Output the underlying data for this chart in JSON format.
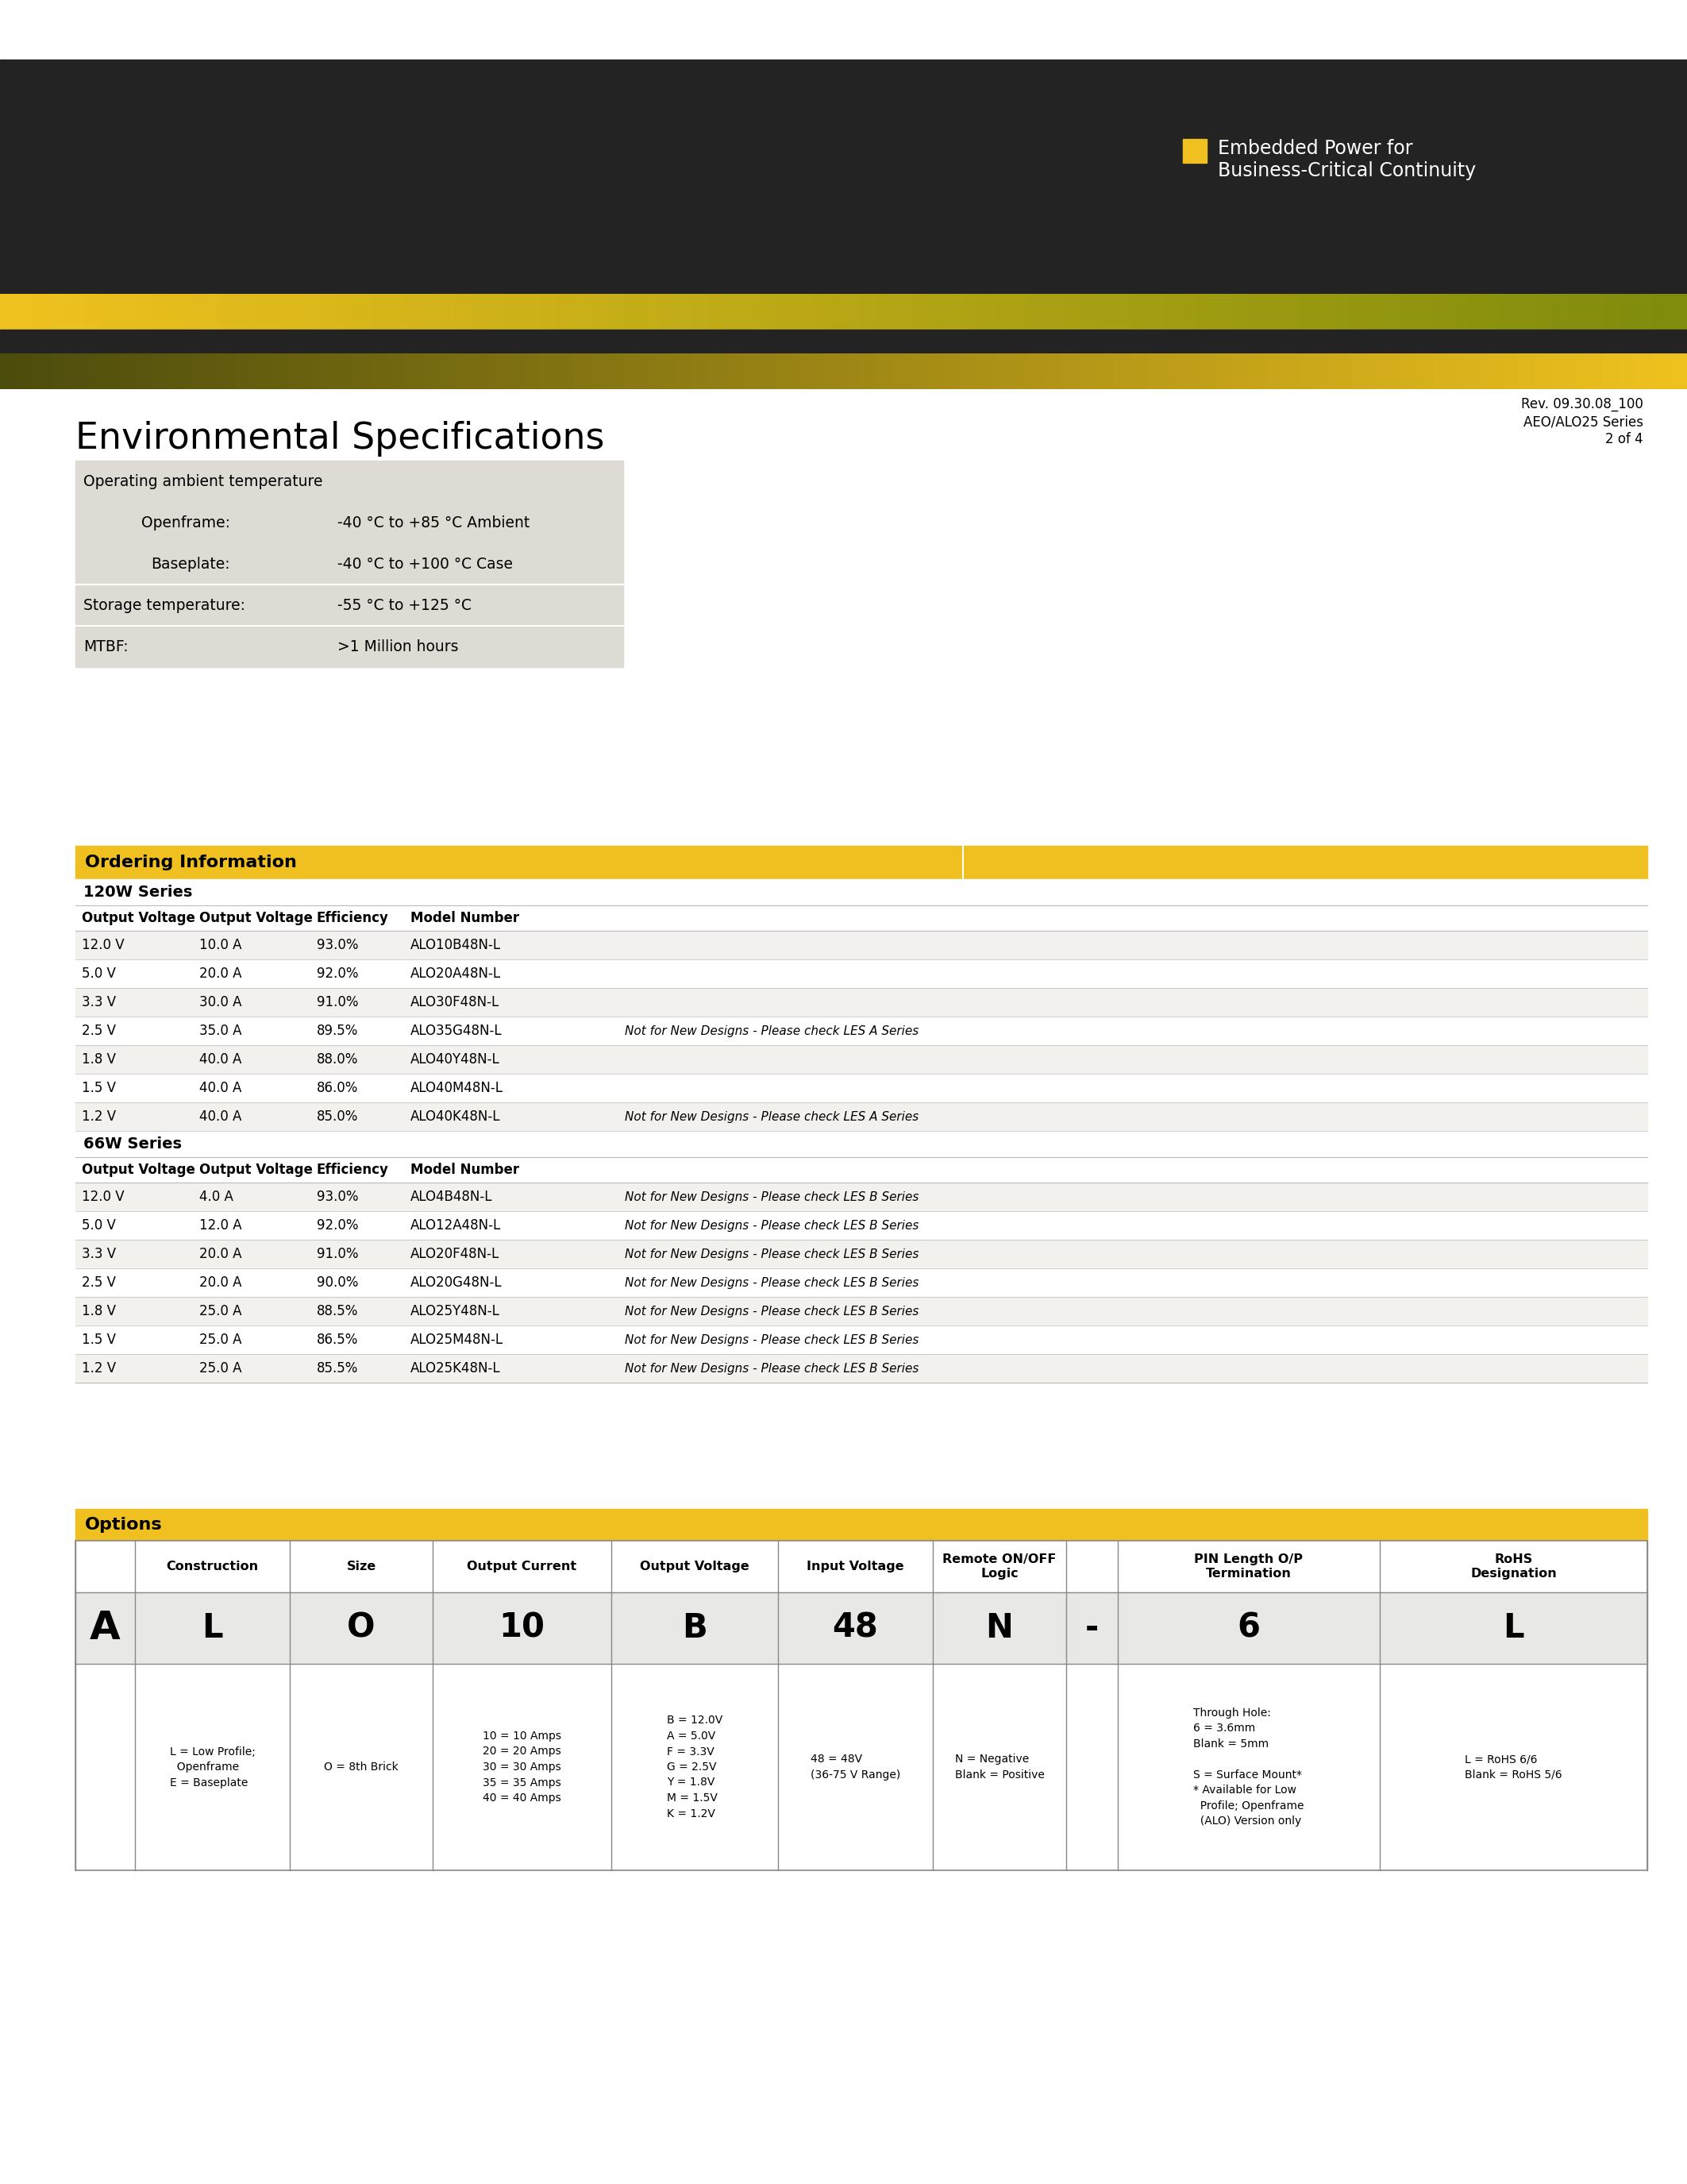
{
  "page_bg": "#ffffff",
  "header_dark_bg": "#232323",
  "header_yellow": "#f0c020",
  "yellow_accent": "#f0c020",
  "brand_text_line1": "Embedded Power for",
  "brand_text_line2": "Business-Critical Continuity",
  "rev_text": "Rev. 09.30.08_100",
  "series_text": "AEO/ALO25 Series",
  "page_text": "2 of 4",
  "env_title": "Environmental Specifications",
  "env_table_bg": "#dedad4",
  "ordering_title": "Ordering Information",
  "order_header_bg": "#f0c020",
  "series_120w_label": "120W Series",
  "series_66w_label": "66W Series",
  "col_headers": [
    "Output Voltage",
    "Output Voltage",
    "Efficiency",
    "Model Number"
  ],
  "rows_120w": [
    [
      "12.0 V",
      "10.0 A",
      "93.0%",
      "ALO10B48N-L",
      ""
    ],
    [
      "5.0 V",
      "20.0 A",
      "92.0%",
      "ALO20A48N-L",
      ""
    ],
    [
      "3.3 V",
      "30.0 A",
      "91.0%",
      "ALO30F48N-L",
      ""
    ],
    [
      "2.5 V",
      "35.0 A",
      "89.5%",
      "ALO35G48N-L",
      "Not for New Designs - Please check LES A Series"
    ],
    [
      "1.8 V",
      "40.0 A",
      "88.0%",
      "ALO40Y48N-L",
      ""
    ],
    [
      "1.5 V",
      "40.0 A",
      "86.0%",
      "ALO40M48N-L",
      ""
    ],
    [
      "1.2 V",
      "40.0 A",
      "85.0%",
      "ALO40K48N-L",
      "Not for New Designs - Please check LES A Series"
    ]
  ],
  "rows_66w": [
    [
      "12.0 V",
      "4.0 A",
      "93.0%",
      "ALO4B48N-L",
      "Not for New Designs - Please check LES B Series"
    ],
    [
      "5.0 V",
      "12.0 A",
      "92.0%",
      "ALO12A48N-L",
      "Not for New Designs - Please check LES B Series"
    ],
    [
      "3.3 V",
      "20.0 A",
      "91.0%",
      "ALO20F48N-L",
      "Not for New Designs - Please check LES B Series"
    ],
    [
      "2.5 V",
      "20.0 A",
      "90.0%",
      "ALO20G48N-L",
      "Not for New Designs - Please check LES B Series"
    ],
    [
      "1.8 V",
      "25.0 A",
      "88.5%",
      "ALO25Y48N-L",
      "Not for New Designs - Please check LES B Series"
    ],
    [
      "1.5 V",
      "25.0 A",
      "86.5%",
      "ALO25M48N-L",
      "Not for New Designs - Please check LES B Series"
    ],
    [
      "1.2 V",
      "25.0 A",
      "85.5%",
      "ALO25K48N-L",
      "Not for New Designs - Please check LES B Series"
    ]
  ],
  "options_title": "Options",
  "options_header_bg": "#f0c020",
  "options_col_headers": [
    "Construction",
    "Size",
    "Output Current",
    "Output Voltage",
    "Input Voltage",
    "Remote ON/OFF\nLogic",
    "",
    "PIN Length O/P\nTermination",
    "RoHS\nDesignation"
  ],
  "options_row_letters": [
    "L",
    "O",
    "10",
    "B",
    "48",
    "N",
    "-",
    "6",
    "L"
  ],
  "options_row_desc": [
    "L = Low Profile;\n  Openframe\nE = Baseplate",
    "O = 8th Brick",
    "10 = 10 Amps\n20 = 20 Amps\n30 = 30 Amps\n35 = 35 Amps\n40 = 40 Amps",
    "B = 12.0V\nA = 5.0V\nF = 3.3V\nG = 2.5V\nY = 1.8V\nM = 1.5V\nK = 1.2V",
    "48 = 48V\n(36-75 V Range)",
    "N = Negative\nBlank = Positive",
    "",
    "Through Hole:\n6 = 3.6mm\nBlank = 5mm\n\nS = Surface Mount*\n* Available for Low\n  Profile; Openframe\n  (ALO) Version only",
    "L = RoHS 6/6\nBlank = RoHS 5/6"
  ],
  "options_prefix": "A"
}
